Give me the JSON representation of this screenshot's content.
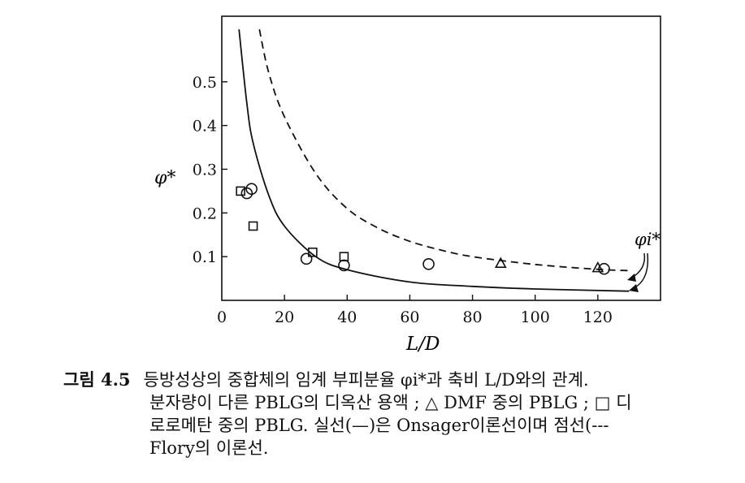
{
  "chart_data": {
    "type": "scatter",
    "xlabel": "L/D",
    "ylabel": "φ*",
    "xlim": [
      0,
      140
    ],
    "ylim": [
      0,
      0.65
    ],
    "x_ticks": [
      "0",
      "20",
      "40",
      "60",
      "80",
      "100",
      "120"
    ],
    "y_ticks": [
      "0.1",
      "0.2",
      "0.3",
      "0.4",
      "0.5"
    ],
    "annotation": "φi*",
    "series": [
      {
        "marker": "square",
        "points": [
          [
            6,
            0.25
          ],
          [
            10,
            0.17
          ],
          [
            29,
            0.11
          ],
          [
            39,
            0.1
          ]
        ]
      },
      {
        "marker": "circle",
        "points": [
          [
            8,
            0.245
          ],
          [
            9.5,
            0.255
          ],
          [
            27,
            0.095
          ],
          [
            39,
            0.08
          ],
          [
            66,
            0.083
          ],
          [
            122,
            0.072
          ]
        ]
      },
      {
        "marker": "triangle",
        "points": [
          [
            89,
            0.085
          ],
          [
            120,
            0.075
          ]
        ]
      }
    ],
    "curves": [
      {
        "style": "solid",
        "points": [
          [
            5.5,
            0.62
          ],
          [
            8,
            0.45
          ],
          [
            10,
            0.36
          ],
          [
            15,
            0.24
          ],
          [
            20,
            0.17
          ],
          [
            30,
            0.1
          ],
          [
            40,
            0.07
          ],
          [
            60,
            0.042
          ],
          [
            80,
            0.032
          ],
          [
            100,
            0.026
          ],
          [
            130,
            0.021
          ]
        ]
      },
      {
        "style": "dashed",
        "points": [
          [
            12,
            0.62
          ],
          [
            15,
            0.52
          ],
          [
            20,
            0.42
          ],
          [
            30,
            0.29
          ],
          [
            40,
            0.21
          ],
          [
            50,
            0.165
          ],
          [
            60,
            0.135
          ],
          [
            70,
            0.115
          ],
          [
            80,
            0.1
          ],
          [
            100,
            0.082
          ],
          [
            120,
            0.071
          ],
          [
            130,
            0.068
          ]
        ]
      }
    ]
  },
  "caption": {
    "label": "그림 4.5",
    "line1": "등방성상의 중합체의 임계 부피분율 φi*과 축비 L/D와의 관계.",
    "line2": "분자량이 다른 PBLG의 디옥산 용액 ; △ DMF 중의 PBLG ; □ 디",
    "line3": "로로메탄 중의 PBLG. 실선(—)은 Onsager이론선이며 점선(---",
    "line4": "Flory의 이론선."
  }
}
